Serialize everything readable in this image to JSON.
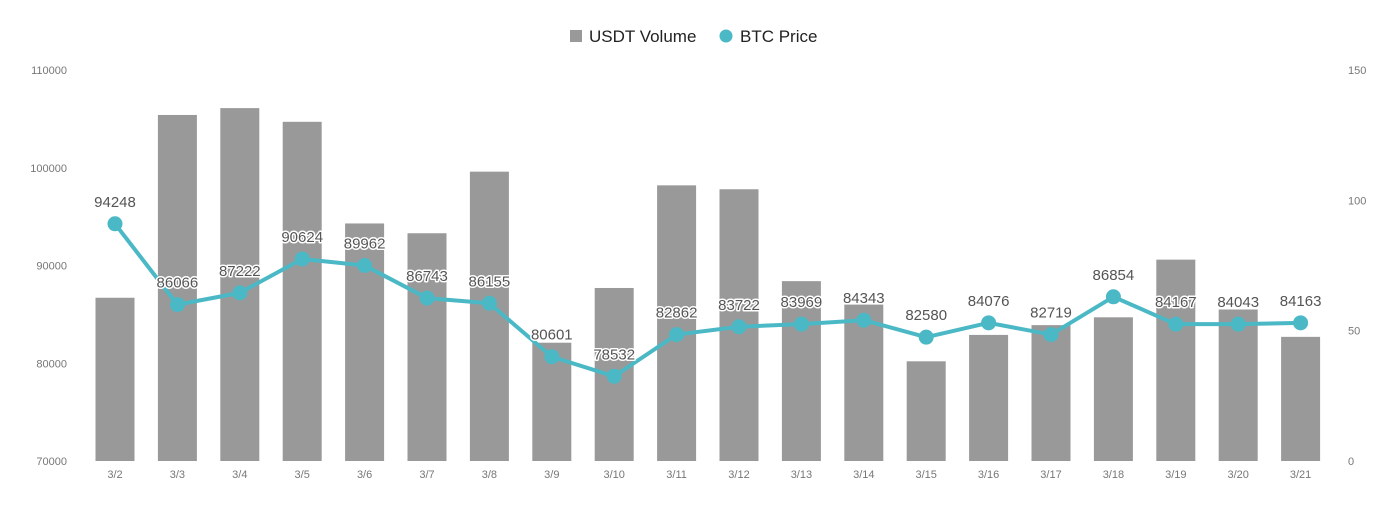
{
  "chart_data": {
    "type": "bar",
    "categories": [
      "3/2",
      "3/3",
      "3/4",
      "3/5",
      "3/6",
      "3/7",
      "3/8",
      "3/9",
      "3/10",
      "3/11",
      "3/12",
      "3/13",
      "3/14",
      "3/15",
      "3/16",
      "3/17",
      "3/18",
      "3/19",
      "3/20",
      "3/21"
    ],
    "series": [
      {
        "name": "USDT Volume",
        "type": "bar",
        "axis": "left",
        "color": "#999999",
        "values": [
          86700,
          105400,
          106100,
          104700,
          94300,
          93300,
          99600,
          82100,
          87700,
          98200,
          97800,
          88400,
          86000,
          80200,
          82900,
          83900,
          84700,
          90600,
          85500,
          82700
        ]
      },
      {
        "name": "BTC Price",
        "type": "line",
        "axis": "right",
        "color": "#4BB8C6",
        "values": [
          91,
          60,
          64.5,
          77.5,
          75,
          62.5,
          60.5,
          40,
          32.5,
          48.5,
          51.5,
          52.5,
          54,
          47.5,
          53,
          48.5,
          63,
          52.5,
          52.5,
          53
        ],
        "labels": [
          "94248",
          "86066",
          "87222",
          "90624",
          "89962",
          "86743",
          "86155",
          "80601",
          "78532",
          "82862",
          "83722",
          "83969",
          "84343",
          "82580",
          "84076",
          "82719",
          "86854",
          "84167",
          "84043",
          "84163"
        ]
      }
    ],
    "yleft": {
      "lim": [
        70000,
        110000
      ],
      "ticks": [
        "70000",
        "80000",
        "90000",
        "100000",
        "110000"
      ]
    },
    "yright": {
      "lim": [
        0,
        150
      ],
      "ticks": [
        "0",
        "50",
        "100",
        "150"
      ]
    },
    "legend": "top-center",
    "grid": false
  }
}
